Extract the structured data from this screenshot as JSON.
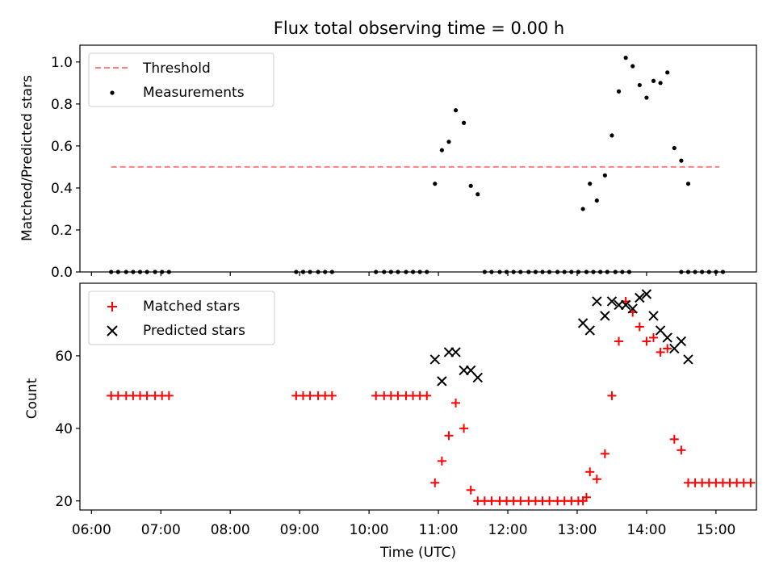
{
  "chart_data": [
    {
      "type": "scatter",
      "title": "Flux total observing time = 0.00 h",
      "ylabel": "Matched/Predicted stars",
      "xlabel": "",
      "xlim": [
        "05:50",
        "15:35"
      ],
      "ylim": [
        0,
        1.08
      ],
      "yticks": [
        "0.0",
        "0.2",
        "0.4",
        "0.6",
        "0.8",
        "1.0"
      ],
      "legend": "top-left",
      "threshold": {
        "name": "Threshold",
        "value": 0.5,
        "x_range": [
          "06:17",
          "15:03"
        ],
        "color": "#ff7f7f",
        "style": "dashed"
      },
      "series": [
        {
          "name": "Measurements",
          "color": "#000000",
          "marker": "dot",
          "points": [
            [
              "06:17",
              0
            ],
            [
              "06:23",
              0
            ],
            [
              "06:30",
              0
            ],
            [
              "06:36",
              0
            ],
            [
              "06:42",
              0
            ],
            [
              "06:48",
              0
            ],
            [
              "06:55",
              0
            ],
            [
              "07:01",
              0
            ],
            [
              "07:07",
              0
            ],
            [
              "08:57",
              0
            ],
            [
              "09:03",
              0
            ],
            [
              "09:09",
              0
            ],
            [
              "09:16",
              0
            ],
            [
              "09:22",
              0
            ],
            [
              "09:28",
              0
            ],
            [
              "10:06",
              0
            ],
            [
              "10:13",
              0
            ],
            [
              "10:19",
              0
            ],
            [
              "10:25",
              0
            ],
            [
              "10:32",
              0
            ],
            [
              "10:38",
              0
            ],
            [
              "10:44",
              0
            ],
            [
              "10:50",
              0
            ],
            [
              "10:57",
              0.42
            ],
            [
              "11:03",
              0.58
            ],
            [
              "11:09",
              0.62
            ],
            [
              "11:15",
              0.77
            ],
            [
              "11:22",
              0.71
            ],
            [
              "11:28",
              0.41
            ],
            [
              "11:34",
              0.37
            ],
            [
              "11:40",
              0
            ],
            [
              "11:46",
              0
            ],
            [
              "11:53",
              0
            ],
            [
              "11:59",
              0
            ],
            [
              "12:05",
              0
            ],
            [
              "12:11",
              0
            ],
            [
              "12:18",
              0
            ],
            [
              "12:24",
              0
            ],
            [
              "12:30",
              0
            ],
            [
              "12:36",
              0
            ],
            [
              "12:43",
              0
            ],
            [
              "12:49",
              0
            ],
            [
              "12:55",
              0
            ],
            [
              "13:01",
              0
            ],
            [
              "13:08",
              0
            ],
            [
              "13:14",
              0
            ],
            [
              "13:20",
              0
            ],
            [
              "13:26",
              0
            ],
            [
              "13:33",
              0
            ],
            [
              "13:39",
              0
            ],
            [
              "13:45",
              0
            ],
            [
              "13:05",
              0.3
            ],
            [
              "13:11",
              0.42
            ],
            [
              "13:17",
              0.34
            ],
            [
              "13:24",
              0.46
            ],
            [
              "13:30",
              0.65
            ],
            [
              "13:36",
              0.86
            ],
            [
              "13:42",
              1.02
            ],
            [
              "13:48",
              0.98
            ],
            [
              "13:54",
              0.89
            ],
            [
              "14:00",
              0.83
            ],
            [
              "14:06",
              0.91
            ],
            [
              "14:12",
              0.9
            ],
            [
              "14:18",
              0.95
            ],
            [
              "14:24",
              0.59
            ],
            [
              "14:30",
              0.53
            ],
            [
              "14:36",
              0.42
            ],
            [
              "14:30",
              0
            ],
            [
              "14:36",
              0
            ],
            [
              "14:42",
              0
            ],
            [
              "14:48",
              0
            ],
            [
              "14:54",
              0
            ],
            [
              "15:00",
              0
            ],
            [
              "15:06",
              0
            ]
          ]
        }
      ]
    },
    {
      "type": "scatter",
      "title": "",
      "xlabel": "Time (UTC)",
      "ylabel": "Count",
      "xlim": [
        "05:50",
        "15:35"
      ],
      "ylim": [
        17.5,
        80
      ],
      "xticks": [
        "06:00",
        "07:00",
        "08:00",
        "09:00",
        "10:00",
        "11:00",
        "12:00",
        "13:00",
        "14:00",
        "15:00"
      ],
      "yticks": [
        "20",
        "40",
        "60"
      ],
      "legend": "top-left",
      "series": [
        {
          "name": "Matched stars",
          "color": "#ff0000",
          "marker": "plus",
          "points": [
            [
              "06:17",
              49
            ],
            [
              "06:23",
              49
            ],
            [
              "06:30",
              49
            ],
            [
              "06:36",
              49
            ],
            [
              "06:42",
              49
            ],
            [
              "06:48",
              49
            ],
            [
              "06:55",
              49
            ],
            [
              "07:01",
              49
            ],
            [
              "07:07",
              49
            ],
            [
              "08:57",
              49
            ],
            [
              "09:03",
              49
            ],
            [
              "09:09",
              49
            ],
            [
              "09:16",
              49
            ],
            [
              "09:22",
              49
            ],
            [
              "09:28",
              49
            ],
            [
              "10:06",
              49
            ],
            [
              "10:13",
              49
            ],
            [
              "10:19",
              49
            ],
            [
              "10:25",
              49
            ],
            [
              "10:32",
              49
            ],
            [
              "10:38",
              49
            ],
            [
              "10:44",
              49
            ],
            [
              "10:50",
              49
            ],
            [
              "10:57",
              25
            ],
            [
              "11:03",
              31
            ],
            [
              "11:09",
              38
            ],
            [
              "11:15",
              47
            ],
            [
              "11:22",
              40
            ],
            [
              "11:28",
              23
            ],
            [
              "11:34",
              20
            ],
            [
              "11:40",
              20
            ],
            [
              "11:46",
              20
            ],
            [
              "11:53",
              20
            ],
            [
              "11:59",
              20
            ],
            [
              "12:05",
              20
            ],
            [
              "12:11",
              20
            ],
            [
              "12:18",
              20
            ],
            [
              "12:24",
              20
            ],
            [
              "12:30",
              20
            ],
            [
              "12:36",
              20
            ],
            [
              "12:43",
              20
            ],
            [
              "12:49",
              20
            ],
            [
              "12:55",
              20
            ],
            [
              "13:01",
              20
            ],
            [
              "13:05",
              20
            ],
            [
              "13:08",
              21
            ],
            [
              "13:11",
              28
            ],
            [
              "13:17",
              26
            ],
            [
              "13:24",
              33
            ],
            [
              "13:30",
              49
            ],
            [
              "13:36",
              64
            ],
            [
              "13:42",
              75
            ],
            [
              "13:48",
              72
            ],
            [
              "13:54",
              68
            ],
            [
              "14:00",
              64
            ],
            [
              "14:06",
              65
            ],
            [
              "14:12",
              61
            ],
            [
              "14:18",
              62
            ],
            [
              "14:24",
              37
            ],
            [
              "14:30",
              34
            ],
            [
              "14:36",
              25
            ],
            [
              "14:42",
              25
            ],
            [
              "14:48",
              25
            ],
            [
              "14:54",
              25
            ],
            [
              "15:00",
              25
            ],
            [
              "15:06",
              25
            ],
            [
              "15:12",
              25
            ],
            [
              "15:18",
              25
            ],
            [
              "15:24",
              25
            ],
            [
              "15:30",
              25
            ]
          ]
        },
        {
          "name": "Predicted stars",
          "color": "#000000",
          "marker": "x",
          "points": [
            [
              "10:57",
              59
            ],
            [
              "11:03",
              53
            ],
            [
              "11:09",
              61
            ],
            [
              "11:15",
              61
            ],
            [
              "11:22",
              56
            ],
            [
              "11:28",
              56
            ],
            [
              "11:34",
              54
            ],
            [
              "13:05",
              69
            ],
            [
              "13:11",
              67
            ],
            [
              "13:17",
              75
            ],
            [
              "13:24",
              71
            ],
            [
              "13:30",
              75
            ],
            [
              "13:36",
              74
            ],
            [
              "13:42",
              74
            ],
            [
              "13:48",
              73
            ],
            [
              "13:54",
              76
            ],
            [
              "14:00",
              77
            ],
            [
              "14:06",
              71
            ],
            [
              "14:12",
              67
            ],
            [
              "14:18",
              65
            ],
            [
              "14:24",
              62
            ],
            [
              "14:30",
              64
            ],
            [
              "14:36",
              59
            ]
          ]
        }
      ]
    }
  ]
}
